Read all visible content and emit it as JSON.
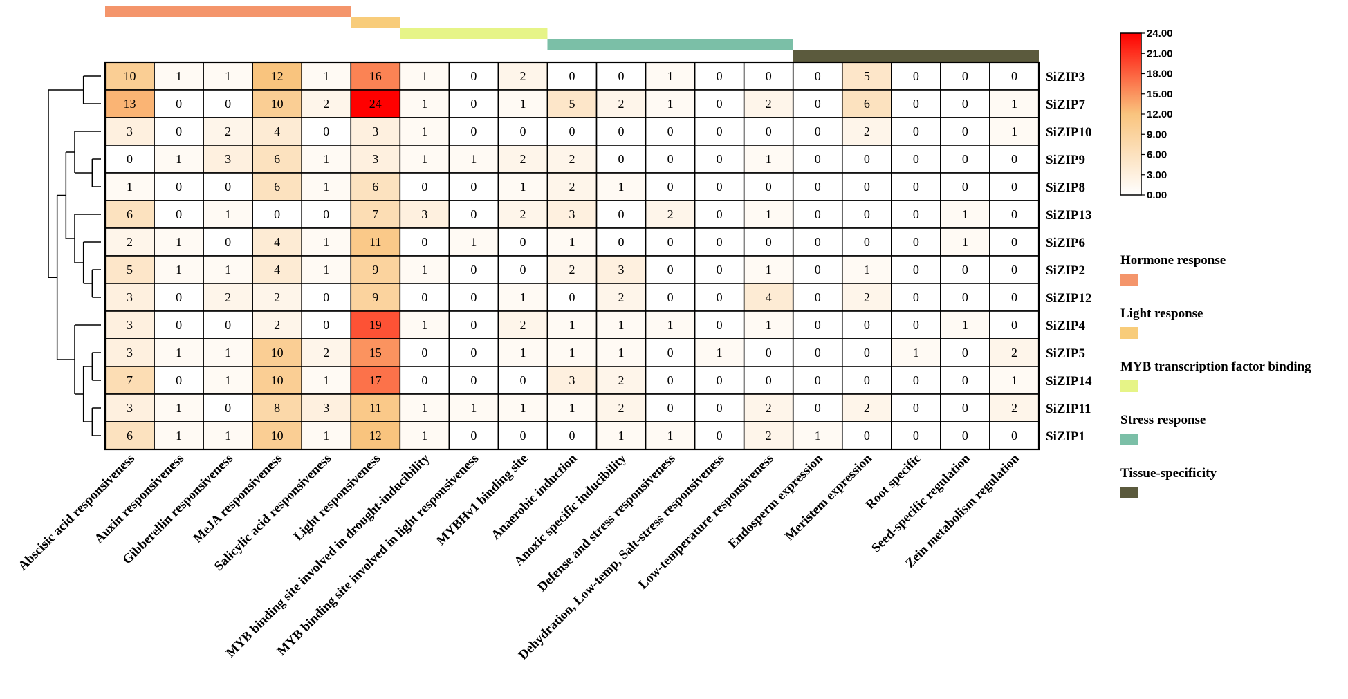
{
  "chart_data": {
    "type": "heatmap",
    "title": "",
    "rows": [
      "SiZIP3",
      "SiZIP7",
      "SiZIP10",
      "SiZIP9",
      "SiZIP8",
      "SiZIP13",
      "SiZIP6",
      "SiZIP2",
      "SiZIP12",
      "SiZIP4",
      "SiZIP5",
      "SiZIP14",
      "SiZIP11",
      "SiZIP1"
    ],
    "columns": [
      "Abscisic acid responsiveness",
      "Auxin responsiveness",
      "Gibberellin responsiveness",
      "MeJA responsiveness",
      "Salicylic acid responsiveness",
      "Light responsiveness",
      "MYB binding site involved in drought-inducibility",
      "MYB binding site involved in light responsiveness",
      "MYBHv1 binding site",
      "Anaerobic induction",
      "Anoxic specific inducibility",
      "Defense and stress responsiveness",
      "Dehydration, Low-temp, Salt-stress responsiveness",
      "Low-temperature responsiveness",
      "Endosperm expression",
      "Meristem expression",
      "Root specific",
      "Seed-specific regulation",
      "Zein metabolism regulation"
    ],
    "values": [
      [
        10,
        1,
        1,
        12,
        1,
        16,
        1,
        0,
        2,
        0,
        0,
        1,
        0,
        0,
        0,
        5,
        0,
        0,
        0
      ],
      [
        13,
        0,
        0,
        10,
        2,
        24,
        1,
        0,
        1,
        5,
        2,
        1,
        0,
        2,
        0,
        6,
        0,
        0,
        1
      ],
      [
        3,
        0,
        2,
        4,
        0,
        3,
        1,
        0,
        0,
        0,
        0,
        0,
        0,
        0,
        0,
        2,
        0,
        0,
        1
      ],
      [
        0,
        1,
        3,
        6,
        1,
        3,
        1,
        1,
        2,
        2,
        0,
        0,
        0,
        1,
        0,
        0,
        0,
        0,
        0
      ],
      [
        1,
        0,
        0,
        6,
        1,
        6,
        0,
        0,
        1,
        2,
        1,
        0,
        0,
        0,
        0,
        0,
        0,
        0,
        0
      ],
      [
        6,
        0,
        1,
        0,
        0,
        7,
        3,
        0,
        2,
        3,
        0,
        2,
        0,
        1,
        0,
        0,
        0,
        1,
        0
      ],
      [
        2,
        1,
        0,
        4,
        1,
        11,
        0,
        1,
        0,
        1,
        0,
        0,
        0,
        0,
        0,
        0,
        0,
        1,
        0
      ],
      [
        5,
        1,
        1,
        4,
        1,
        9,
        1,
        0,
        0,
        2,
        3,
        0,
        0,
        1,
        0,
        1,
        0,
        0,
        0
      ],
      [
        3,
        0,
        2,
        2,
        0,
        9,
        0,
        0,
        1,
        0,
        2,
        0,
        0,
        4,
        0,
        2,
        0,
        0,
        0
      ],
      [
        3,
        0,
        0,
        2,
        0,
        19,
        1,
        0,
        2,
        1,
        1,
        1,
        0,
        1,
        0,
        0,
        0,
        1,
        0
      ],
      [
        3,
        1,
        1,
        10,
        2,
        15,
        0,
        0,
        1,
        1,
        1,
        0,
        1,
        0,
        0,
        0,
        1,
        0,
        2
      ],
      [
        7,
        0,
        1,
        10,
        1,
        17,
        0,
        0,
        0,
        3,
        2,
        0,
        0,
        0,
        0,
        0,
        0,
        0,
        1
      ],
      [
        3,
        1,
        0,
        8,
        3,
        11,
        1,
        1,
        1,
        1,
        2,
        0,
        0,
        2,
        0,
        2,
        0,
        0,
        2
      ],
      [
        6,
        1,
        1,
        10,
        1,
        12,
        1,
        0,
        0,
        0,
        1,
        1,
        0,
        2,
        1,
        0,
        0,
        0,
        0
      ]
    ],
    "color_scale": {
      "min": 0,
      "max": 24,
      "ticks": [
        "24.00",
        "21.00",
        "18.00",
        "15.00",
        "12.00",
        "9.00",
        "6.00",
        "3.00",
        "0.00"
      ],
      "colors": [
        "#ffffff",
        "#f9c47e",
        "#ff0000"
      ]
    },
    "categories": [
      {
        "name": "Hormone response",
        "color": "#f4956b",
        "columns": [
          0,
          4
        ]
      },
      {
        "name": "Light response",
        "color": "#f8cc7a",
        "columns": [
          5,
          5
        ]
      },
      {
        "name": "MYB transcription factor binding",
        "color": "#e6f487",
        "columns": [
          6,
          8
        ]
      },
      {
        "name": "Stress response",
        "color": "#7bbfa7",
        "columns": [
          9,
          13
        ]
      },
      {
        "name": "Tissue-specificity",
        "color": "#5b5a3d",
        "columns": [
          14,
          18
        ]
      }
    ],
    "dendrogram": {
      "leaves": [
        "SiZIP3",
        "SiZIP7",
        "SiZIP10",
        "SiZIP9",
        "SiZIP8",
        "SiZIP13",
        "SiZIP6",
        "SiZIP2",
        "SiZIP12",
        "SiZIP4",
        "SiZIP5",
        "SiZIP14",
        "SiZIP11",
        "SiZIP1"
      ],
      "merges": [
        {
          "a": 0,
          "b": 1,
          "height": 2
        },
        {
          "a": 3,
          "b": 4,
          "height": 1
        },
        {
          "a": 2,
          "b": 15,
          "height": 3
        },
        {
          "a": 7,
          "b": 8,
          "height": 1
        },
        {
          "a": 6,
          "b": 17,
          "height": 2
        },
        {
          "a": 5,
          "b": 18,
          "height": 3
        },
        {
          "a": 16,
          "b": 19,
          "height": 4
        },
        {
          "a": 10,
          "b": 11,
          "height": 1
        },
        {
          "a": 12,
          "b": 13,
          "height": 1
        },
        {
          "a": 21,
          "b": 22,
          "height": 2
        },
        {
          "a": 9,
          "b": 23,
          "height": 3
        },
        {
          "a": 20,
          "b": 24,
          "height": 5
        },
        {
          "a": 14,
          "b": 25,
          "height": 6
        }
      ]
    }
  }
}
